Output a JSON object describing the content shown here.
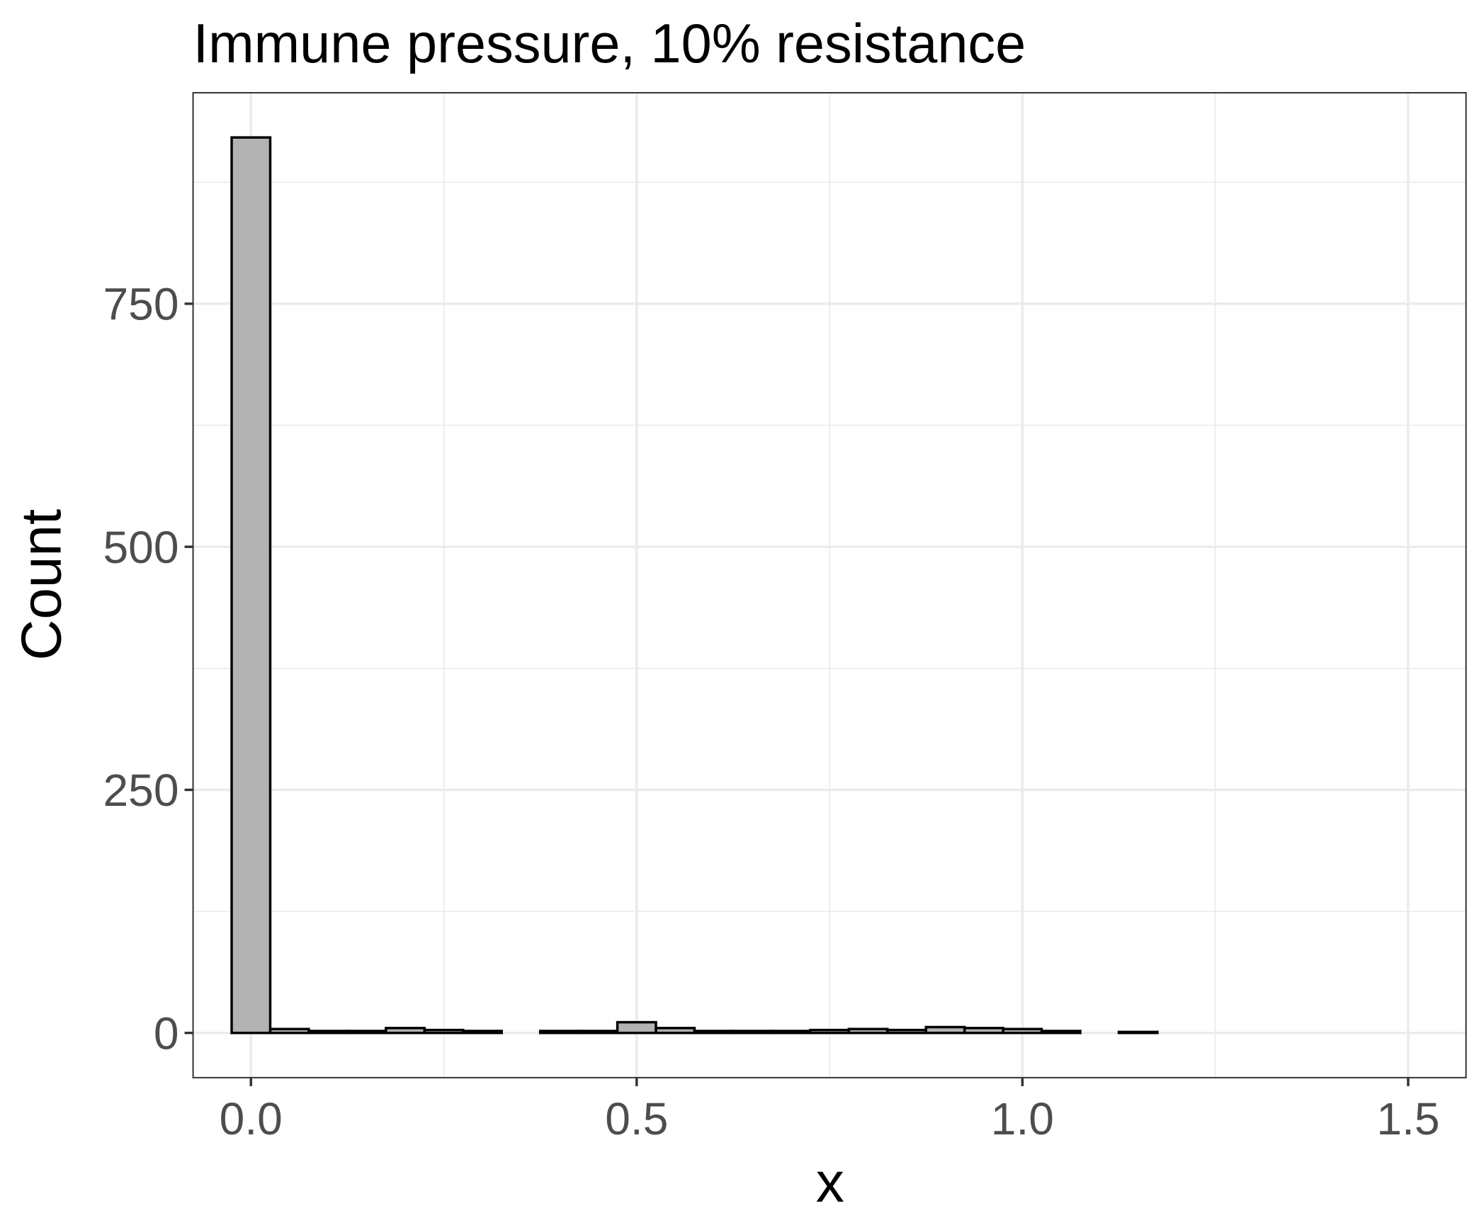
{
  "chart_data": {
    "type": "histogram",
    "title": "Immune pressure, 10% resistance",
    "x_label": "x",
    "y_label": "Count",
    "bins": [
      -0.025,
      0.025,
      0.075,
      0.125,
      0.175,
      0.225,
      0.275,
      0.325,
      0.375,
      0.425,
      0.475,
      0.525,
      0.575,
      0.625,
      0.675,
      0.725,
      0.775,
      0.825,
      0.875,
      0.925,
      0.975,
      1.025,
      1.075,
      1.125,
      1.175,
      1.225,
      1.275,
      1.325,
      1.375,
      1.425,
      1.475,
      1.525
    ],
    "counts": [
      921,
      4,
      2,
      2,
      5,
      3,
      2,
      0,
      2,
      2,
      11,
      5,
      2,
      2,
      2,
      3,
      4,
      3,
      6,
      5,
      4,
      2,
      0,
      1,
      0,
      0,
      0,
      0,
      0,
      0,
      0
    ],
    "color": "#b3b3b3",
    "edgecolor": "#000000",
    "xlim": [
      -0.075,
      1.575
    ],
    "ylim": [
      -46,
      967
    ],
    "xticks": [
      {
        "value": 0,
        "label": "0.0"
      },
      0.5,
      {
        "value": 1,
        "label": "1.0"
      },
      1.5
    ],
    "yticks": [
      0,
      250,
      500,
      750
    ],
    "xminor": [
      0.25,
      0.75,
      1.25
    ],
    "yminor": [
      125,
      375,
      625,
      875
    ],
    "grid": true
  }
}
